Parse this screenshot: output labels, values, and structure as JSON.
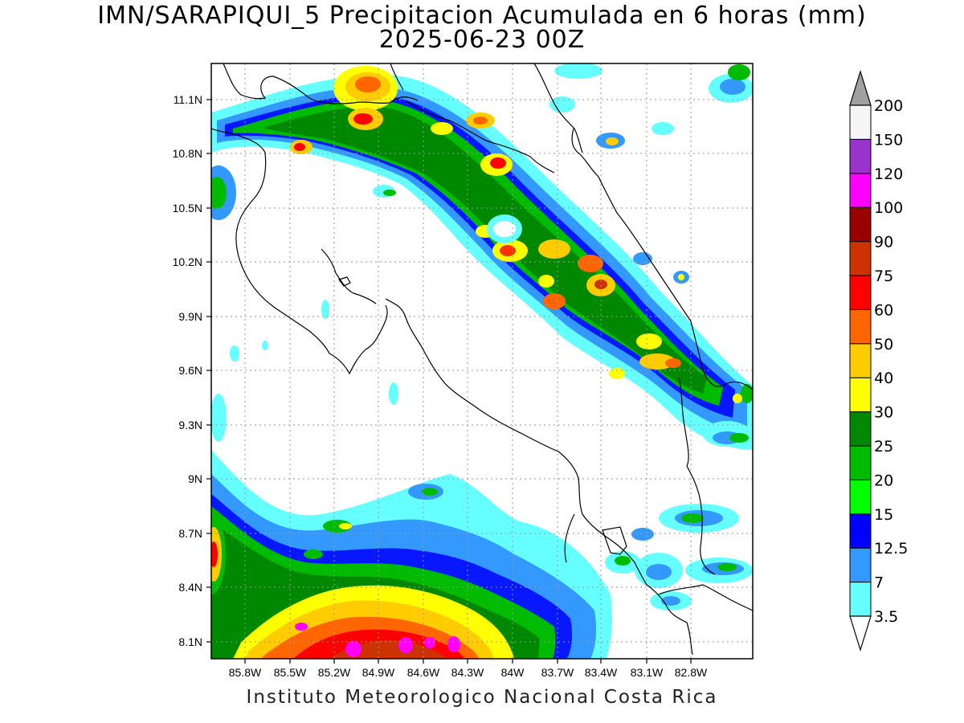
{
  "title_line1": "IMN/SARAPIQUI_5 Precipitacion Acumulada en 6 horas (mm)",
  "title_line2": "2025-06-23 00Z",
  "footer": "Instituto Meteorologico Nacional Costa Rica",
  "lat_labels": [
    "11.1N",
    "10.8N",
    "10.5N",
    "10.2N",
    "9.9N",
    "9.6N",
    "9.3N",
    "9N",
    "8.7N",
    "8.4N",
    "8.1N"
  ],
  "lon_labels": [
    "85.8W",
    "85.5W",
    "85.2W",
    "84.9W",
    "84.6W",
    "84.3W",
    "84W",
    "83.7W",
    "83.4W",
    "83.1W",
    "82.8W"
  ],
  "colorbar": {
    "labels": [
      "3.5",
      "7",
      "12.5",
      "15",
      "20",
      "25",
      "30",
      "40",
      "50",
      "60",
      "75",
      "90",
      "100",
      "120",
      "150",
      "200"
    ],
    "colors": [
      "#66ffff",
      "#3399ff",
      "#0000ff",
      "#00ff00",
      "#00bb00",
      "#008800",
      "#ffff00",
      "#ffcc00",
      "#ff6600",
      "#ff0000",
      "#cc3300",
      "#990000",
      "#ff00ff",
      "#9933cc",
      "#f5f5f5"
    ],
    "under_color": "#ffffff",
    "over_color": "#a0a0a0"
  }
}
